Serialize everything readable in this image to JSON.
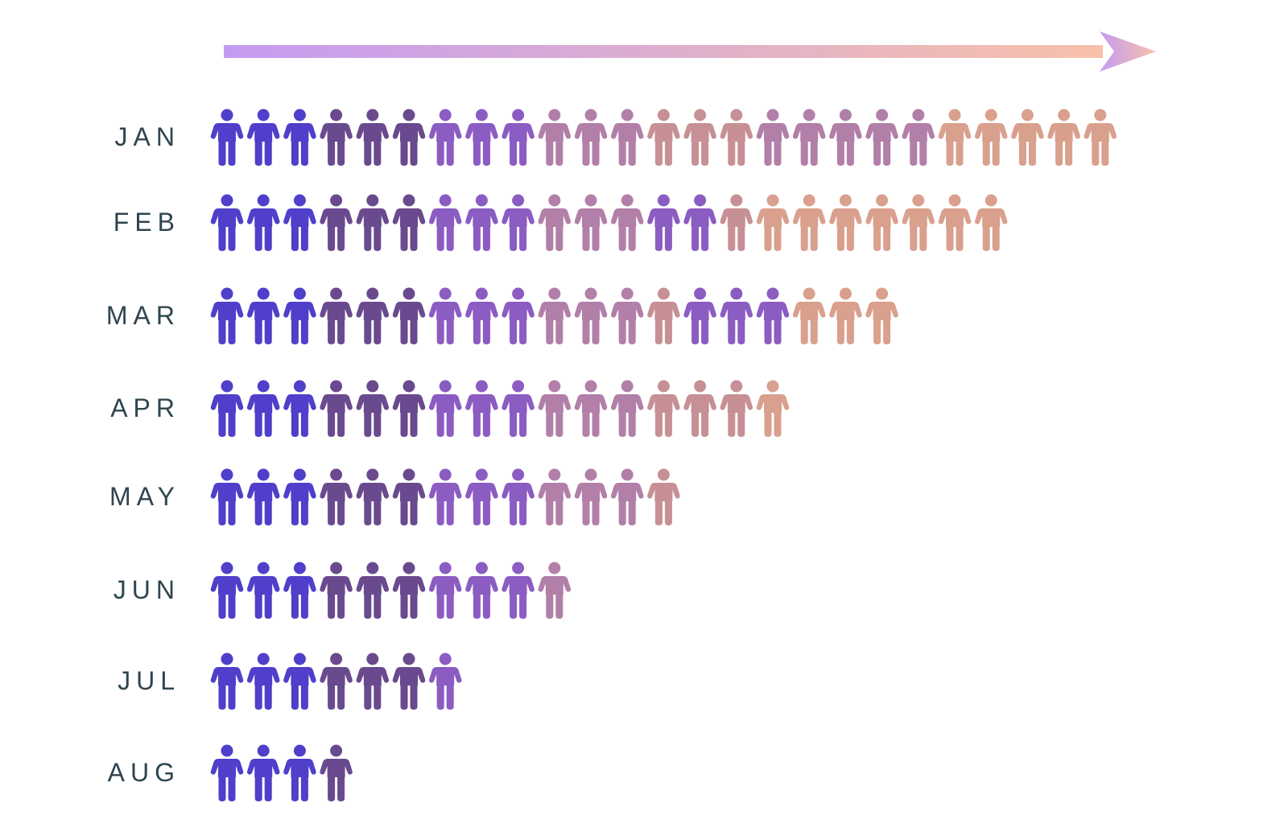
{
  "chart_data": {
    "type": "bar",
    "title": "",
    "xlabel": "",
    "ylabel": "",
    "categories": [
      "JAN",
      "FEB",
      "MAR",
      "APR",
      "MAY",
      "JUN",
      "JUL",
      "AUG"
    ],
    "values": [
      25,
      22,
      19,
      16,
      13,
      10,
      7,
      4
    ],
    "icon": "person-icon",
    "arrow": {
      "direction": "right",
      "gradient": [
        "#c49bf2",
        "#f7c1aa"
      ]
    },
    "colors": {
      "label": "#2f4550",
      "palette": {
        "blue": "#4f3fca",
        "dark": "#6a4a8e",
        "violet": "#8b5cc2",
        "mauve": "#b27fa8",
        "rose": "#c69095",
        "peach": "#d9a08e"
      }
    },
    "icon_colors": [
      [
        "blue",
        "blue",
        "blue",
        "dark",
        "dark",
        "dark",
        "violet",
        "violet",
        "violet",
        "mauve",
        "mauve",
        "mauve",
        "rose",
        "rose",
        "rose",
        "mauve",
        "mauve",
        "mauve",
        "mauve",
        "mauve",
        "peach",
        "peach",
        "peach",
        "peach",
        "peach"
      ],
      [
        "blue",
        "blue",
        "blue",
        "dark",
        "dark",
        "dark",
        "violet",
        "violet",
        "violet",
        "mauve",
        "mauve",
        "mauve",
        "violet",
        "violet",
        "rose",
        "peach",
        "peach",
        "peach",
        "peach",
        "peach",
        "peach",
        "peach"
      ],
      [
        "blue",
        "blue",
        "blue",
        "dark",
        "dark",
        "dark",
        "violet",
        "violet",
        "violet",
        "mauve",
        "mauve",
        "mauve",
        "rose",
        "violet",
        "violet",
        "violet",
        "peach",
        "peach",
        "peach"
      ],
      [
        "blue",
        "blue",
        "blue",
        "dark",
        "dark",
        "dark",
        "violet",
        "violet",
        "violet",
        "mauve",
        "mauve",
        "mauve",
        "rose",
        "rose",
        "rose",
        "peach"
      ],
      [
        "blue",
        "blue",
        "blue",
        "dark",
        "dark",
        "dark",
        "violet",
        "violet",
        "violet",
        "mauve",
        "mauve",
        "mauve",
        "rose"
      ],
      [
        "blue",
        "blue",
        "blue",
        "dark",
        "dark",
        "dark",
        "violet",
        "violet",
        "violet",
        "mauve"
      ],
      [
        "blue",
        "blue",
        "blue",
        "dark",
        "dark",
        "dark",
        "violet"
      ],
      [
        "blue",
        "blue",
        "blue",
        "dark"
      ]
    ]
  }
}
